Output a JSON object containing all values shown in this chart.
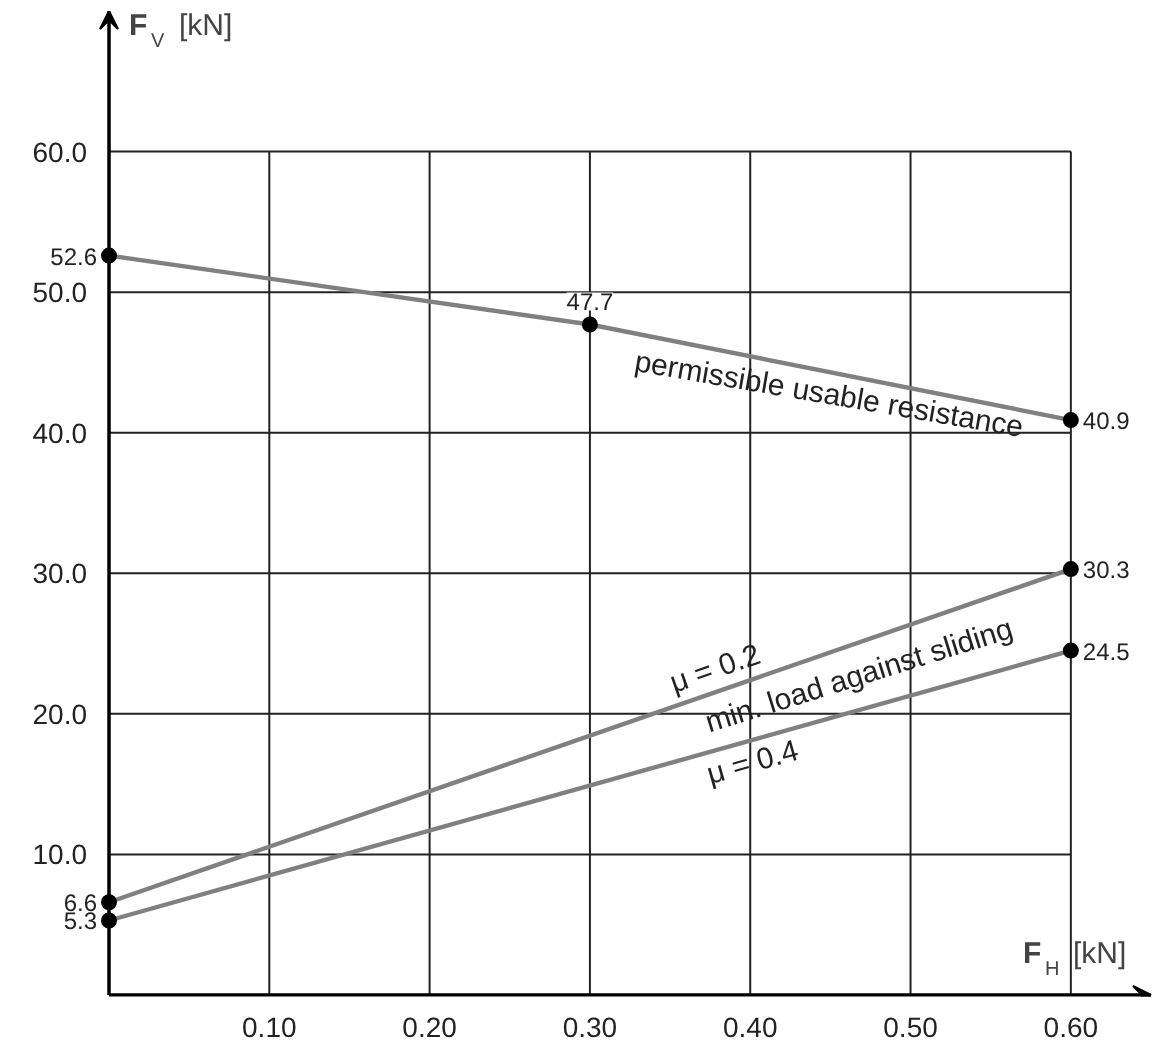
{
  "chart_data": {
    "type": "line",
    "xlabel": "F$_{H}$ [kN]",
    "ylabel": "F$_{V}$ [kN]",
    "series": [
      {
        "name": "permissible usable resistance",
        "color": "#808080",
        "x": [
          0,
          0.3,
          0.6
        ],
        "values": [
          52.6,
          47.7,
          40.9
        ]
      },
      {
        "name": "μ = 0.2",
        "color": "#808080",
        "x": [
          0,
          0.6
        ],
        "values": [
          6.6,
          30.3
        ]
      },
      {
        "name": "μ = 0.4",
        "color": "#808080",
        "x": [
          0,
          0.6
        ],
        "values": [
          5.3,
          24.5
        ]
      }
    ],
    "annotations": [
      "min. load against sliding"
    ],
    "xlim": [
      0,
      0.65
    ],
    "ylim": [
      0,
      70
    ],
    "xticks": [
      {
        "value": 0.1,
        "label": "0.10"
      },
      {
        "value": 0.2,
        "label": "0.20"
      },
      {
        "value": 0.3,
        "label": "0.30"
      },
      {
        "value": 0.4,
        "label": "0.40"
      },
      {
        "value": 0.5,
        "label": "0.50"
      },
      {
        "value": 0.6,
        "label": "0.60"
      }
    ],
    "yticks": [
      {
        "value": 10,
        "label": "10.0"
      },
      {
        "value": 20,
        "label": "20.0"
      },
      {
        "value": 30,
        "label": "30.0"
      },
      {
        "value": 40,
        "label": "40.0"
      },
      {
        "value": 50,
        "label": "50.0"
      },
      {
        "value": 60,
        "label": "60.0"
      }
    ],
    "grid": true,
    "marker": "circle",
    "line_style": "solid",
    "data_labels": true
  }
}
